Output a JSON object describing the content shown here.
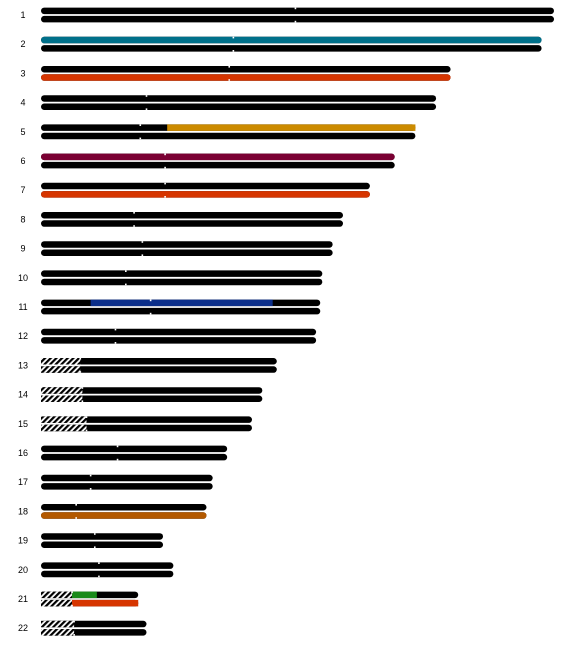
{
  "colors": {
    "chromatid": "#000000",
    "background": "#ffffff",
    "hatch": "#000000",
    "centromere_gap": "#ffffff"
  },
  "chromosomes": [
    {
      "label": "1",
      "length": 248,
      "centromere": 123,
      "acrocentric": false,
      "highlights": []
    },
    {
      "label": "2",
      "length": 242,
      "centromere": 93,
      "acrocentric": false,
      "highlights": [
        {
          "chromatid": "top",
          "start": 0,
          "end": 242,
          "color": "#00708a"
        }
      ]
    },
    {
      "label": "3",
      "length": 198,
      "centromere": 91,
      "acrocentric": false,
      "highlights": [
        {
          "chromatid": "bottom",
          "start": 0,
          "end": 198,
          "color": "#d63500"
        }
      ]
    },
    {
      "label": "4",
      "length": 191,
      "centromere": 51,
      "acrocentric": false,
      "highlights": []
    },
    {
      "label": "5",
      "length": 181,
      "centromere": 48,
      "acrocentric": false,
      "highlights": [
        {
          "chromatid": "top",
          "start": 61,
          "end": 181,
          "color": "#cc8b00"
        }
      ]
    },
    {
      "label": "6",
      "length": 171,
      "centromere": 60,
      "acrocentric": false,
      "highlights": [
        {
          "chromatid": "top",
          "start": 0,
          "end": 171,
          "color": "#7a0033"
        }
      ]
    },
    {
      "label": "7",
      "length": 159,
      "centromere": 60,
      "acrocentric": false,
      "highlights": [
        {
          "chromatid": "bottom",
          "start": 0,
          "end": 159,
          "color": "#d63500"
        }
      ]
    },
    {
      "label": "8",
      "length": 146,
      "centromere": 45,
      "acrocentric": false,
      "highlights": []
    },
    {
      "label": "9",
      "length": 141,
      "centromere": 49,
      "acrocentric": false,
      "highlights": []
    },
    {
      "label": "10",
      "length": 136,
      "centromere": 41,
      "acrocentric": false,
      "highlights": []
    },
    {
      "label": "11",
      "length": 135,
      "centromere": 53,
      "acrocentric": false,
      "highlights": [
        {
          "chromatid": "top",
          "start": 24,
          "end": 112,
          "color": "#0b2e8a"
        }
      ]
    },
    {
      "label": "12",
      "length": 133,
      "centromere": 36,
      "acrocentric": false,
      "highlights": []
    },
    {
      "label": "13",
      "length": 114,
      "centromere": 19,
      "acrocentric": true,
      "highlights": []
    },
    {
      "label": "14",
      "length": 107,
      "centromere": 20,
      "acrocentric": true,
      "highlights": []
    },
    {
      "label": "15",
      "length": 102,
      "centromere": 22,
      "acrocentric": true,
      "highlights": []
    },
    {
      "label": "16",
      "length": 90,
      "centromere": 37,
      "acrocentric": false,
      "highlights": []
    },
    {
      "label": "17",
      "length": 83,
      "centromere": 24,
      "acrocentric": false,
      "highlights": []
    },
    {
      "label": "18",
      "length": 80,
      "centromere": 17,
      "acrocentric": false,
      "highlights": [
        {
          "chromatid": "bottom",
          "start": 0,
          "end": 80,
          "color": "#b35900"
        }
      ]
    },
    {
      "label": "19",
      "length": 59,
      "centromere": 26,
      "acrocentric": false,
      "highlights": []
    },
    {
      "label": "20",
      "length": 64,
      "centromere": 28,
      "acrocentric": false,
      "highlights": []
    },
    {
      "label": "21",
      "length": 47,
      "centromere": 15,
      "acrocentric": true,
      "highlights": [
        {
          "chromatid": "top",
          "start": 15,
          "end": 27,
          "color": "#1a8a1a"
        },
        {
          "chromatid": "bottom",
          "start": 15,
          "end": 47,
          "color": "#d63500"
        }
      ]
    },
    {
      "label": "22",
      "length": 51,
      "centromere": 16,
      "acrocentric": true,
      "highlights": []
    }
  ]
}
